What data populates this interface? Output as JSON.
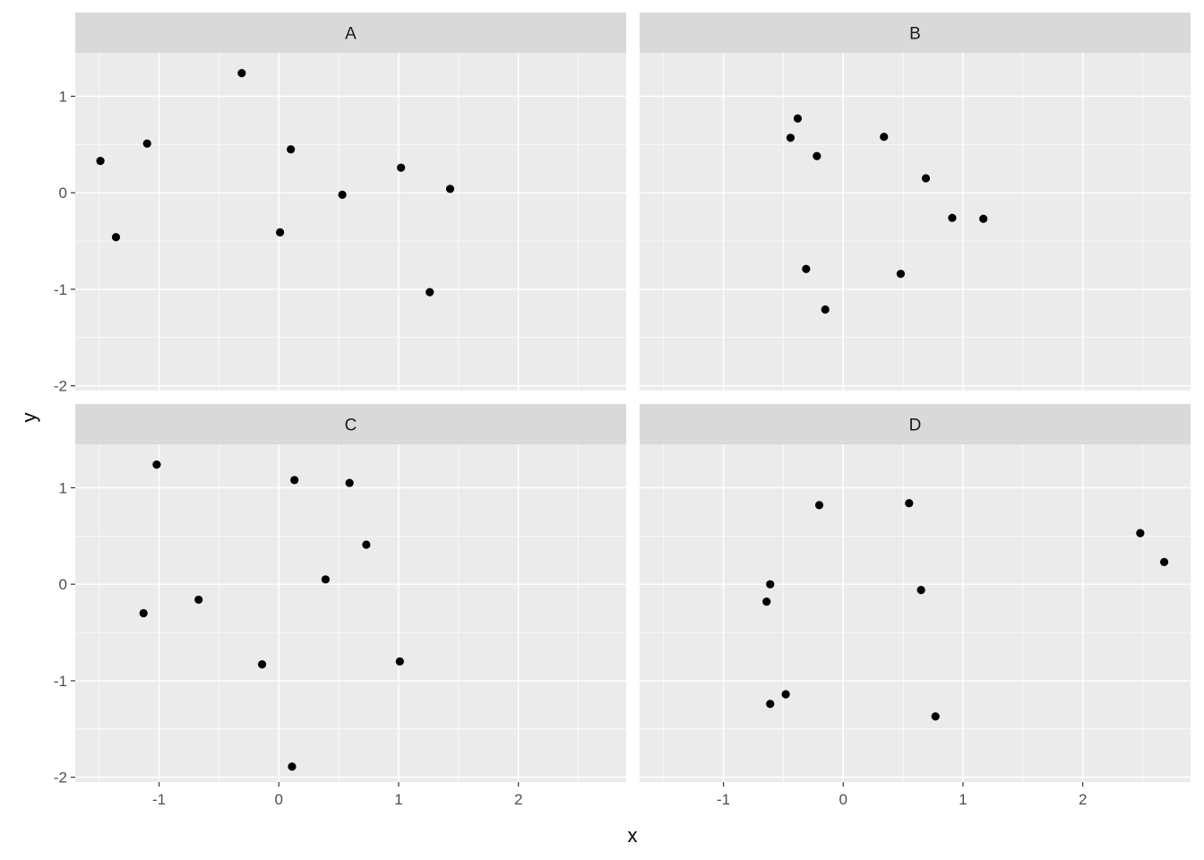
{
  "chart_data": {
    "type": "scatter",
    "layout": "facet_wrap 2x2",
    "xlabel": "x",
    "ylabel": "y",
    "xlim": [
      -1.7,
      2.9
    ],
    "ylim": [
      -2.05,
      1.45
    ],
    "x_ticks": [
      -1,
      0,
      1,
      2
    ],
    "y_ticks": [
      1,
      0,
      -1,
      -2
    ],
    "grid": true,
    "colors": {
      "panel_bg": "#ebebeb",
      "strip_bg": "#d9d9d9",
      "grid": "#ffffff",
      "point": "#000000"
    },
    "facets": [
      {
        "label": "A",
        "points": [
          {
            "x": -1.49,
            "y": 0.33
          },
          {
            "x": -1.36,
            "y": -0.46
          },
          {
            "x": -1.1,
            "y": 0.51
          },
          {
            "x": -0.31,
            "y": 1.24
          },
          {
            "x": 0.01,
            "y": -0.41
          },
          {
            "x": 0.1,
            "y": 0.45
          },
          {
            "x": 0.53,
            "y": -0.02
          },
          {
            "x": 1.02,
            "y": 0.26
          },
          {
            "x": 1.26,
            "y": -1.03
          },
          {
            "x": 1.43,
            "y": 0.04
          }
        ]
      },
      {
        "label": "B",
        "points": [
          {
            "x": -0.44,
            "y": 0.57
          },
          {
            "x": -0.38,
            "y": 0.77
          },
          {
            "x": -0.31,
            "y": -0.79
          },
          {
            "x": -0.22,
            "y": 0.38
          },
          {
            "x": -0.15,
            "y": -1.21
          },
          {
            "x": 0.34,
            "y": 0.58
          },
          {
            "x": 0.48,
            "y": -0.84
          },
          {
            "x": 0.69,
            "y": 0.15
          },
          {
            "x": 0.91,
            "y": -0.26
          },
          {
            "x": 1.17,
            "y": -0.27
          }
        ]
      },
      {
        "label": "C",
        "points": [
          {
            "x": -1.13,
            "y": -0.3
          },
          {
            "x": -1.02,
            "y": 1.24
          },
          {
            "x": -0.67,
            "y": -0.16
          },
          {
            "x": -0.14,
            "y": -0.83
          },
          {
            "x": 0.11,
            "y": -1.89
          },
          {
            "x": 0.13,
            "y": 1.08
          },
          {
            "x": 0.39,
            "y": 0.05
          },
          {
            "x": 0.59,
            "y": 1.05
          },
          {
            "x": 0.73,
            "y": 0.41
          },
          {
            "x": 1.01,
            "y": -0.8
          }
        ]
      },
      {
        "label": "D",
        "points": [
          {
            "x": -0.64,
            "y": -0.18
          },
          {
            "x": -0.61,
            "y": 0.0
          },
          {
            "x": -0.61,
            "y": -1.24
          },
          {
            "x": -0.48,
            "y": -1.14
          },
          {
            "x": -0.2,
            "y": 0.82
          },
          {
            "x": 0.55,
            "y": 0.84
          },
          {
            "x": 0.65,
            "y": -0.06
          },
          {
            "x": 0.77,
            "y": -1.37
          },
          {
            "x": 2.48,
            "y": 0.53
          },
          {
            "x": 2.68,
            "y": 0.23
          }
        ]
      }
    ]
  }
}
